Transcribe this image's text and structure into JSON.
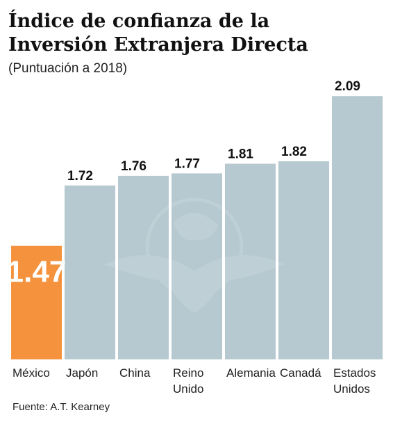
{
  "chart_data": {
    "type": "bar",
    "title_lines": [
      "Índice de confianza de la",
      "Inversión Extranjera Directa"
    ],
    "subtitle": "(Puntuación a 2018)",
    "source": "Fuente: A.T. Kearney",
    "categories": [
      [
        "México"
      ],
      [
        "Japón"
      ],
      [
        "China"
      ],
      [
        "Reino",
        "Unido"
      ],
      [
        "Alemania"
      ],
      [
        "Canadá"
      ],
      [
        "Estados",
        "Unidos"
      ]
    ],
    "values": [
      1.47,
      1.72,
      1.76,
      1.77,
      1.81,
      1.82,
      2.09
    ],
    "value_labels": [
      "1.47",
      "1.72",
      "1.76",
      "1.77",
      "1.81",
      "1.82",
      "2.09"
    ],
    "highlight_index": 0,
    "colors": {
      "highlight": "#f5923e",
      "bar": "#b6c8d0",
      "text": "#111111",
      "highlight_label": "#ffffff"
    },
    "watermark": "eagle-emblem"
  }
}
